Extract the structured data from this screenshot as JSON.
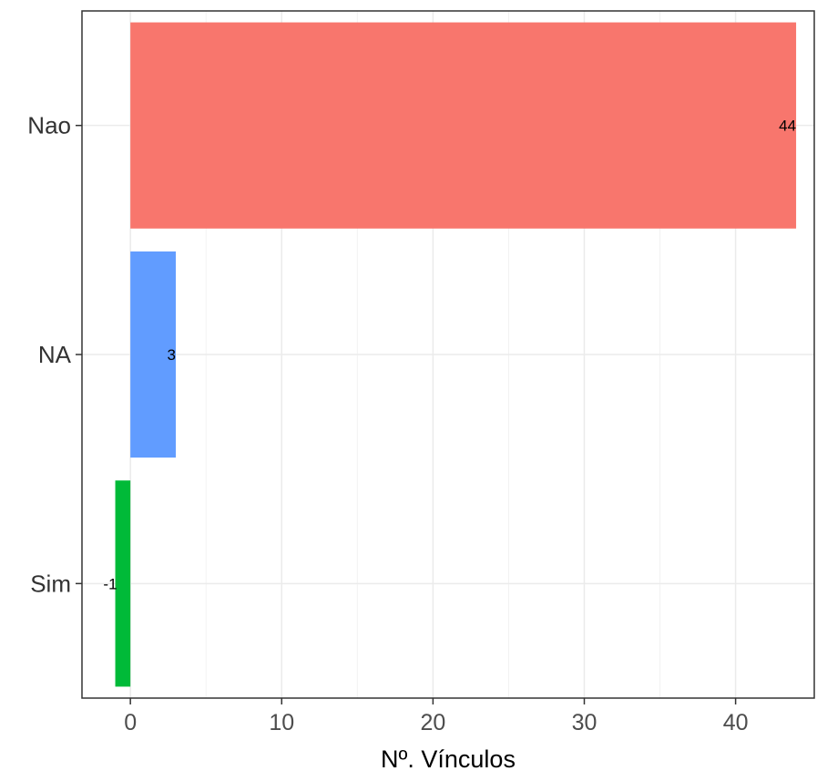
{
  "chart_data": {
    "type": "bar",
    "orientation": "horizontal",
    "categories": [
      "Nao",
      "NA",
      "Sim"
    ],
    "values": [
      44,
      3,
      -1
    ],
    "data_labels": [
      "44",
      "3",
      "-1"
    ],
    "colors": [
      "#F8766D",
      "#619CFF",
      "#00BA38"
    ],
    "xlabel": "Nº. Vínculos",
    "ylabel": "",
    "title": "",
    "xlim": [
      -3.2,
      45.2
    ],
    "xticks": [
      0,
      10,
      20,
      30,
      40
    ],
    "xtick_labels": [
      "0",
      "10",
      "20",
      "30",
      "40"
    ],
    "grid": true,
    "legend": "none"
  }
}
